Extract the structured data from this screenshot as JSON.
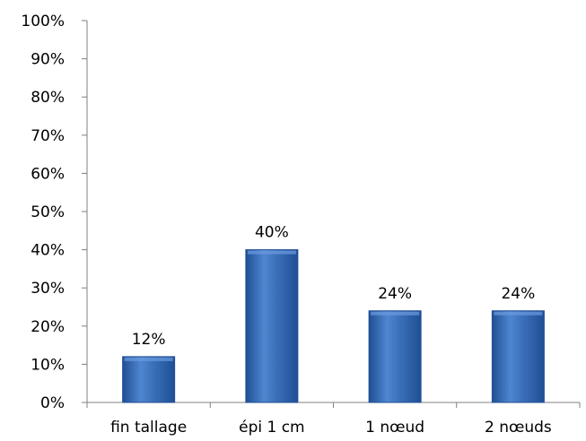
{
  "chart_data": {
    "type": "bar",
    "categories": [
      "fin tallage",
      "épi 1 cm",
      "1 nœud",
      "2 nœuds"
    ],
    "values": [
      12,
      40,
      24,
      24
    ],
    "value_labels": [
      "12%",
      "40%",
      "24%",
      "24%"
    ],
    "title": "",
    "xlabel": "",
    "ylabel": "",
    "ylim": [
      0,
      100
    ],
    "yticks": [
      0,
      10,
      20,
      30,
      40,
      50,
      60,
      70,
      80,
      90,
      100
    ],
    "ytick_labels": [
      "0%",
      "10%",
      "20%",
      "30%",
      "40%",
      "50%",
      "60%",
      "70%",
      "80%",
      "90%",
      "100%"
    ],
    "grid": false,
    "legend": "none",
    "colors": {
      "bar": "#3a6fb8",
      "bar_dark": "#1f4f94",
      "bar_light": "#6c9be0",
      "axis": "#808080"
    }
  }
}
